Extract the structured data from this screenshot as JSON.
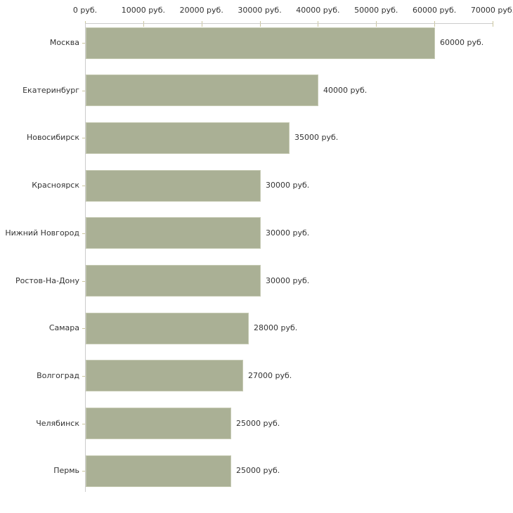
{
  "chart_data": {
    "type": "bar",
    "orientation": "horizontal",
    "title": "",
    "xlabel": "",
    "ylabel": "",
    "categories": [
      "Москва",
      "Екатеринбург",
      "Новосибирск",
      "Красноярск",
      "Нижний Новгород",
      "Ростов-На-Дону",
      "Самара",
      "Волгоград",
      "Челябинск",
      "Пермь"
    ],
    "values": [
      60000,
      40000,
      35000,
      30000,
      30000,
      30000,
      28000,
      27000,
      25000,
      25000
    ],
    "value_labels": [
      "60000 руб.",
      "40000 руб.",
      "35000 руб.",
      "30000 руб.",
      "30000 руб.",
      "30000 руб.",
      "28000 руб.",
      "27000 руб.",
      "25000 руб.",
      "25000 руб."
    ],
    "x_ticks": [
      0,
      10000,
      20000,
      30000,
      40000,
      50000,
      60000,
      70000
    ],
    "x_tick_labels": [
      "0 руб.",
      "10000 руб.",
      "20000 руб.",
      "30000 руб.",
      "40000 руб.",
      "50000 руб.",
      "60000 руб.",
      "70000 руб."
    ],
    "xlim": [
      0,
      70000
    ],
    "grid": false,
    "legend": "none",
    "colors": {
      "bar_fill": "#aab095",
      "bar_border": "#c6cab3",
      "axis_line": "#cccccc",
      "tick_mark": "#cbc69d",
      "text": "#333333"
    }
  }
}
